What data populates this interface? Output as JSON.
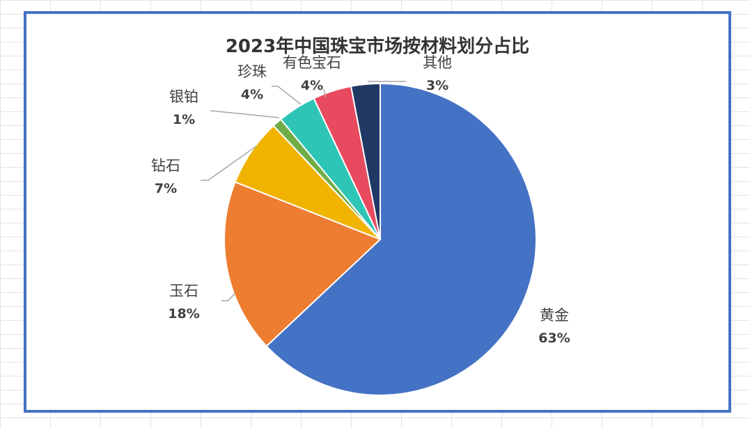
{
  "chart_data": {
    "type": "pie",
    "title": "2023年中国珠宝市场按材料划分占比",
    "slices": [
      {
        "name": "黄金",
        "value": 63,
        "label": "63%",
        "color": "#4472c4"
      },
      {
        "name": "玉石",
        "value": 18,
        "label": "18%",
        "color": "#ed7d31"
      },
      {
        "name": "钻石",
        "value": 7,
        "label": "7%",
        "color": "#f0b400"
      },
      {
        "name": "银铂",
        "value": 1,
        "label": "1%",
        "color": "#70ad47"
      },
      {
        "name": "珍珠",
        "value": 4,
        "label": "4%",
        "color": "#2ec4b6"
      },
      {
        "name": "有色宝石",
        "value": 4,
        "label": "4%",
        "color": "#e84a5f"
      },
      {
        "name": "其他",
        "value": 3,
        "label": "3%",
        "color": "#203864"
      }
    ],
    "legend": "none"
  }
}
